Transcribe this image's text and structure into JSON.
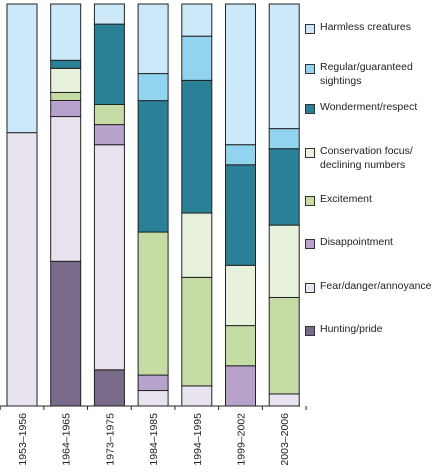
{
  "chart_data": {
    "type": "bar",
    "stacked": true,
    "normalized": true,
    "categories": [
      "1953–1956",
      "1964–1965",
      "1973–1975",
      "1984–1985",
      "1994–1995",
      "1999–2002",
      "2003–2006"
    ],
    "series": [
      {
        "name": "Hunting/pride",
        "color": "#7b6b8a",
        "values": [
          0,
          36,
          9,
          0,
          0,
          0,
          0
        ]
      },
      {
        "name": "Fear/danger/annoyance",
        "color": "#e9e3ef",
        "values": [
          68,
          36,
          56,
          4,
          5,
          0,
          3
        ]
      },
      {
        "name": "Disappointment",
        "color": "#b7a2cc",
        "values": [
          0,
          4,
          5,
          4,
          0,
          10,
          0
        ]
      },
      {
        "name": "Excitement",
        "color": "#c5dca4",
        "values": [
          0,
          2,
          5,
          37,
          27,
          10,
          24
        ]
      },
      {
        "name": "Conservation focus/\ndeclining numbers",
        "color": "#e8f1dc",
        "values": [
          0,
          6,
          0,
          0,
          16,
          15,
          18
        ]
      },
      {
        "name": "Wonderment/respect",
        "color": "#2a8096",
        "values": [
          0,
          2,
          20,
          34,
          33,
          25,
          19
        ]
      },
      {
        "name": "Regular/guaranteed\nsightings",
        "color": "#92d4ef",
        "values": [
          0,
          0,
          0,
          7,
          11,
          5,
          5
        ]
      },
      {
        "name": "Harmless creatures",
        "color": "#cbe9f8",
        "values": [
          32,
          14,
          5,
          18,
          8,
          35,
          31
        ]
      }
    ],
    "ylim": [
      0,
      100
    ],
    "legend_position": "right"
  }
}
